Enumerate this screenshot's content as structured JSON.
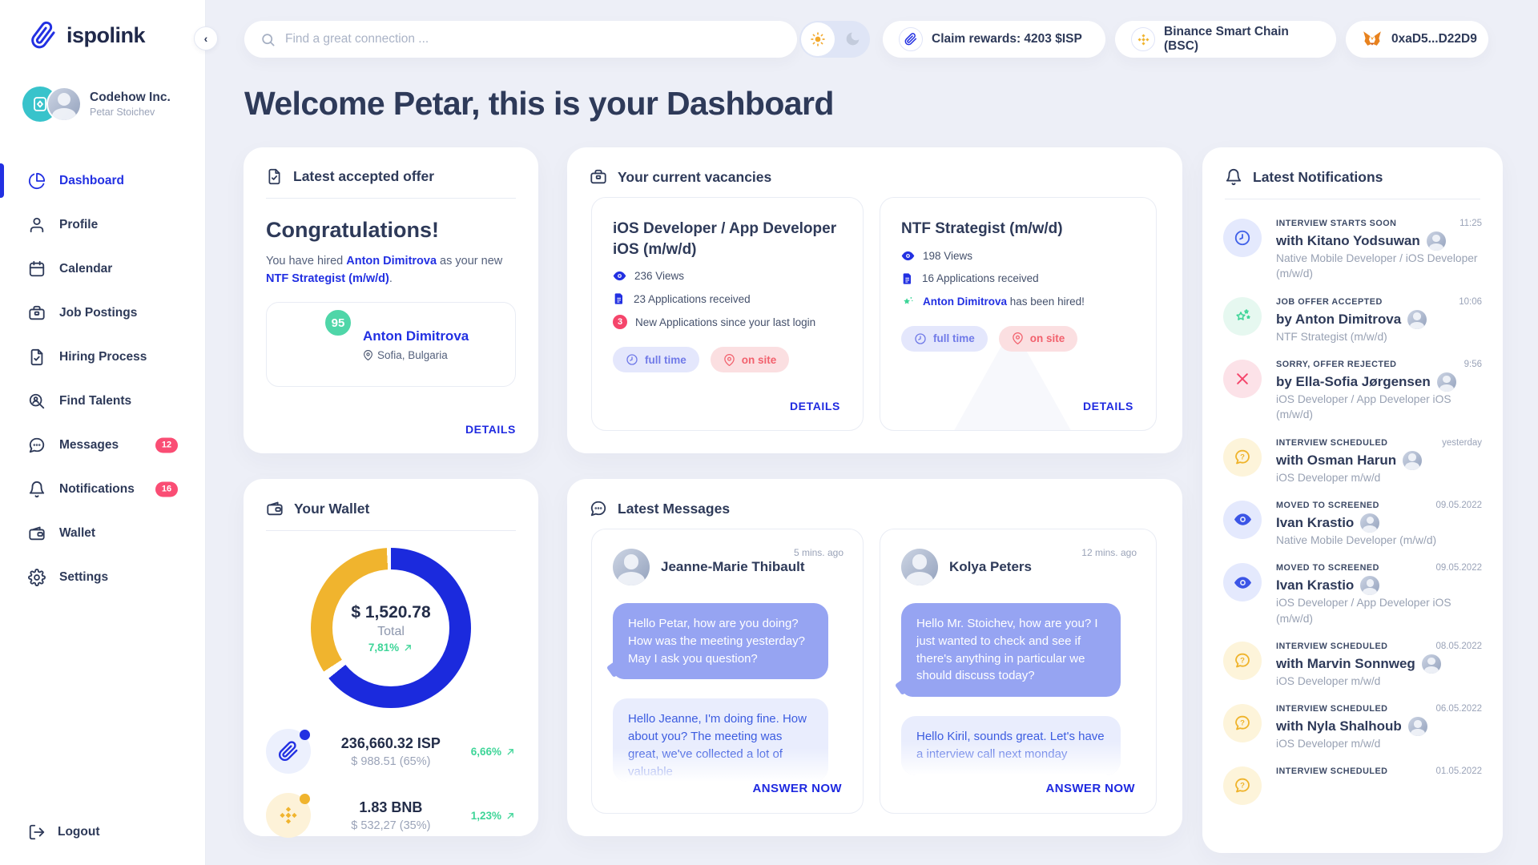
{
  "brand": {
    "name": "ispolink"
  },
  "topbar": {
    "search_placeholder": "Find a great connection ...",
    "claim_rewards": "Claim rewards: 4203 $ISP",
    "network": "Binance Smart Chain (BSC)",
    "wallet_address": "0xaD5...D22D9"
  },
  "sidebar": {
    "company": {
      "name": "Codehow Inc.",
      "user": "Petar Stoichev"
    },
    "items": [
      {
        "label": "Dashboard",
        "icon": "pie-chart-icon",
        "active": true
      },
      {
        "label": "Profile",
        "icon": "user-icon"
      },
      {
        "label": "Calendar",
        "icon": "calendar-icon"
      },
      {
        "label": "Job Postings",
        "icon": "briefcase-icon"
      },
      {
        "label": "Hiring Process",
        "icon": "document-check-icon"
      },
      {
        "label": "Find Talents",
        "icon": "search-user-icon"
      },
      {
        "label": "Messages",
        "icon": "chat-icon",
        "badge": "12"
      },
      {
        "label": "Notifications",
        "icon": "bell-icon",
        "badge": "16"
      },
      {
        "label": "Wallet",
        "icon": "wallet-icon"
      },
      {
        "label": "Settings",
        "icon": "gear-icon"
      }
    ],
    "logout_label": "Logout"
  },
  "page_title": "Welcome Petar, this is your Dashboard",
  "offer_card": {
    "header": "Latest accepted offer",
    "title": "Congratulations!",
    "body_pre": "You have hired ",
    "candidate": "Anton Dimitrova",
    "body_mid": " as your new ",
    "role": "NTF Strategist (m/w/d)",
    "body_post": ".",
    "score": "95",
    "candidate_name": "Anton Dimitrova",
    "candidate_location": "Sofia, Bulgaria",
    "details_label": "DETAILS"
  },
  "vacancies": {
    "header": "Your current vacancies",
    "cards": [
      {
        "title": "iOS Developer / App Developer iOS (m/w/d)",
        "views": "236 Views",
        "applications": "23 Applications received",
        "new_badge": "3",
        "new_text": "New Applications since your last login",
        "tags": [
          "full time",
          "on site"
        ],
        "details_label": "DETAILS"
      },
      {
        "title": "NTF Strategist (m/w/d)",
        "views": "198 Views",
        "applications": "16 Applications received",
        "hired_name": "Anton Dimitrova",
        "hired_text": " has been hired!",
        "tags": [
          "full time",
          "on site"
        ],
        "details_label": "DETAILS"
      }
    ]
  },
  "wallet": {
    "header": "Your Wallet",
    "total": "$ 1,520.78",
    "total_label": "Total",
    "total_change": "7,81%",
    "chart_data": {
      "type": "pie",
      "title": "Your Wallet",
      "categories": [
        "ISP",
        "BNB"
      ],
      "values": [
        65,
        35
      ],
      "colors": [
        "#1b2add",
        "#f0b42e"
      ],
      "center_total": "$ 1,520.78",
      "center_label": "Total",
      "center_change": "7,81%"
    },
    "assets": [
      {
        "icon": "isp-paperclip-icon",
        "amount": "236,660.32 ISP",
        "usd": "$ 988.51 (65%)",
        "change": "6,66%"
      },
      {
        "icon": "bnb-diamond-icon",
        "amount": "1.83 BNB",
        "usd": "$ 532,27 (35%)",
        "change": "1,23%"
      }
    ]
  },
  "messages": {
    "header": "Latest Messages",
    "cards": [
      {
        "sender": "Jeanne-Marie Thibault",
        "time": "5 mins. ago",
        "incoming": "Hello Petar, how are you doing? How was the meeting yesterday? May I ask you question?",
        "outgoing": "Hello Jeanne, I'm doing fine. How about you? The meeting was great, we've collected a lot of valuable",
        "answer_label": "ANSWER NOW"
      },
      {
        "sender": "Kolya Peters",
        "time": "12 mins. ago",
        "incoming": "Hello Mr. Stoichev, how are you? I just wanted to check and see if there's anything in particular we should discuss today?",
        "outgoing": "Hello Kiril, sounds great. Let's have a interview call next monday",
        "answer_label": "ANSWER NOW"
      }
    ]
  },
  "notifications": {
    "header": "Latest Notifications",
    "items": [
      {
        "type": "clock",
        "label": "INTERVIEW STARTS SOON",
        "name": "with Kitano Yodsuwan",
        "time": "11:25",
        "sub": "Native Mobile Developer / iOS Developer (m/w/d)"
      },
      {
        "type": "stars",
        "label": "JOB OFFER ACCEPTED",
        "name": "by Anton Dimitrova",
        "time": "10:06",
        "sub": "NTF Strategist (m/w/d)"
      },
      {
        "type": "rejected",
        "label": "SORRY, OFFER REJECTED",
        "name": "by Ella-Sofia Jørgensen",
        "time": "9:56",
        "sub": "iOS Developer / App Developer iOS (m/w/d)"
      },
      {
        "type": "question",
        "label": "INTERVIEW SCHEDULED",
        "name": "with Osman Harun",
        "time": "yesterday",
        "sub": "iOS Developer m/w/d"
      },
      {
        "type": "eye",
        "label": "MOVED TO SCREENED",
        "name": "Ivan Krastio",
        "time": "09.05.2022",
        "sub": "Native Mobile Developer (m/w/d)"
      },
      {
        "type": "eye",
        "label": "MOVED TO SCREENED",
        "name": "Ivan Krastio",
        "time": "09.05.2022",
        "sub": "iOS Developer / App Developer iOS (m/w/d)"
      },
      {
        "type": "question",
        "label": "INTERVIEW SCHEDULED",
        "name": "with Marvin Sonnweg",
        "time": "08.05.2022",
        "sub": "iOS Developer m/w/d"
      },
      {
        "type": "question",
        "label": "INTERVIEW SCHEDULED",
        "name": "with Nyla Shalhoub",
        "time": "06.05.2022",
        "sub": "iOS Developer m/w/d"
      },
      {
        "type": "question",
        "label": "INTERVIEW SCHEDULED",
        "name": "",
        "time": "01.05.2022",
        "sub": ""
      }
    ]
  },
  "colors": {
    "brand_blue": "#2230e2",
    "donut_blue": "#1b2add",
    "binance_yellow": "#f0b42e",
    "success_green": "#3ed598",
    "badge_pink": "#fa4d74",
    "alert_red": "#f5456b",
    "page_bg": "#edeff7"
  }
}
